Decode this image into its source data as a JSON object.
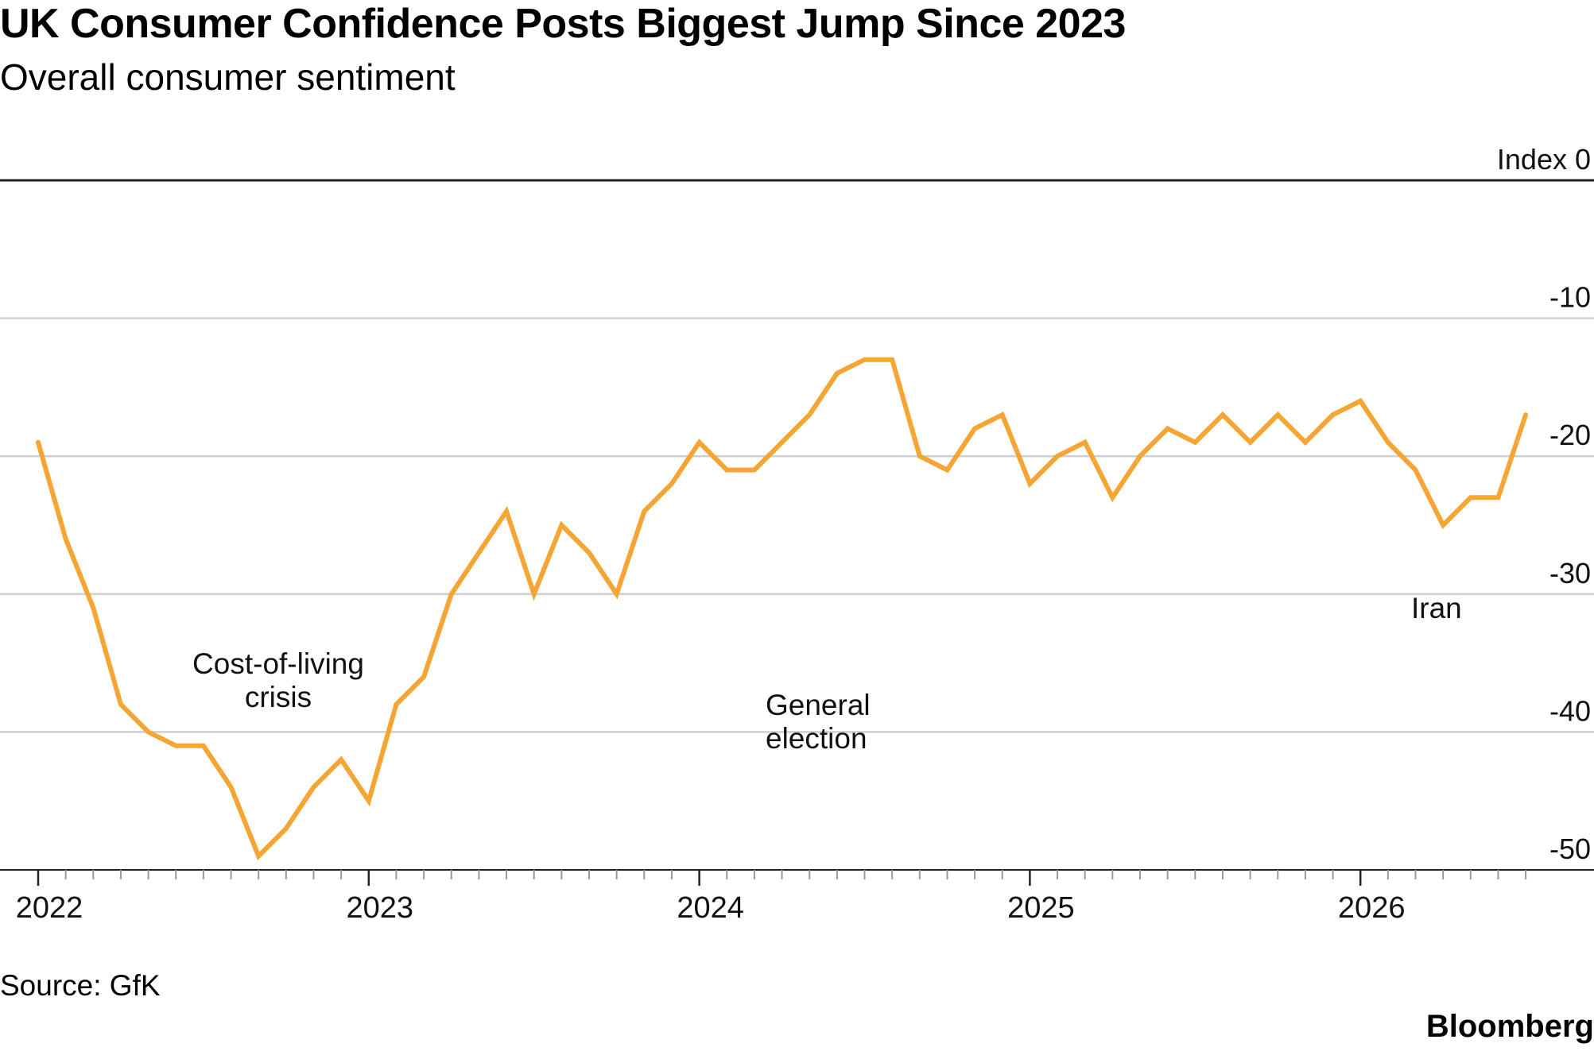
{
  "header": {
    "title": "UK Consumer Confidence Posts Biggest Jump Since 2023",
    "subtitle": "Overall consumer sentiment"
  },
  "footer": {
    "source": "Source: GfK",
    "brand": "Bloomberg"
  },
  "chart_data": {
    "type": "line",
    "title": "UK Consumer Confidence Posts Biggest Jump Since 2023",
    "subtitle": "Overall consumer sentiment",
    "unit_label": "Index",
    "x_ticks": [
      "2022",
      "2023",
      "2024",
      "2025",
      "2026"
    ],
    "y_ticks": [
      0,
      -10,
      -20,
      -30,
      -40,
      -50
    ],
    "ylim": [
      -50,
      0
    ],
    "grid": true,
    "line_color": "#f5a533",
    "annotations": [
      {
        "label": "Cost-of-living crisis",
        "lines": [
          "Cost-of-living",
          "crisis"
        ]
      },
      {
        "label": "General election",
        "lines": [
          "General",
          "election"
        ]
      },
      {
        "label": "Iran",
        "lines": [
          "Iran"
        ]
      }
    ],
    "series": [
      {
        "x": [
          "2022-01",
          "2022-02",
          "2022-03",
          "2022-04",
          "2022-05",
          "2022-06",
          "2022-07",
          "2022-08",
          "2022-09",
          "2022-10",
          "2022-11",
          "2022-12",
          "2023-01",
          "2023-02",
          "2023-03",
          "2023-04",
          "2023-05",
          "2023-06",
          "2023-07",
          "2023-08",
          "2023-09",
          "2023-10",
          "2023-11",
          "2023-12",
          "2024-01",
          "2024-02",
          "2024-03",
          "2024-04",
          "2024-05",
          "2024-06",
          "2024-07",
          "2024-08",
          "2024-09",
          "2024-10",
          "2024-11",
          "2024-12",
          "2025-01",
          "2025-02",
          "2025-03",
          "2025-04",
          "2025-05",
          "2025-06",
          "2025-07",
          "2025-08",
          "2025-09",
          "2025-10",
          "2025-11",
          "2025-12",
          "2026-01",
          "2026-02",
          "2026-03",
          "2026-04",
          "2026-05",
          "2026-06",
          "2026-07"
        ],
        "values": [
          -19,
          -26,
          -31,
          -38,
          -40,
          -41,
          -41,
          -44,
          -49,
          -47,
          -44,
          -42,
          -45,
          -38,
          -36,
          -30,
          -27,
          -24,
          -30,
          -25,
          -27,
          -30,
          -24,
          -22,
          -19,
          -21,
          -21,
          -19,
          -17,
          -14,
          -13,
          -13,
          -20,
          -21,
          -18,
          -17,
          -22,
          -20,
          -19,
          -23,
          -20,
          -18,
          -19,
          -17,
          -19,
          -17,
          -19,
          -17,
          -16,
          -19,
          -21,
          -25,
          -23,
          -23,
          -17
        ]
      }
    ]
  }
}
